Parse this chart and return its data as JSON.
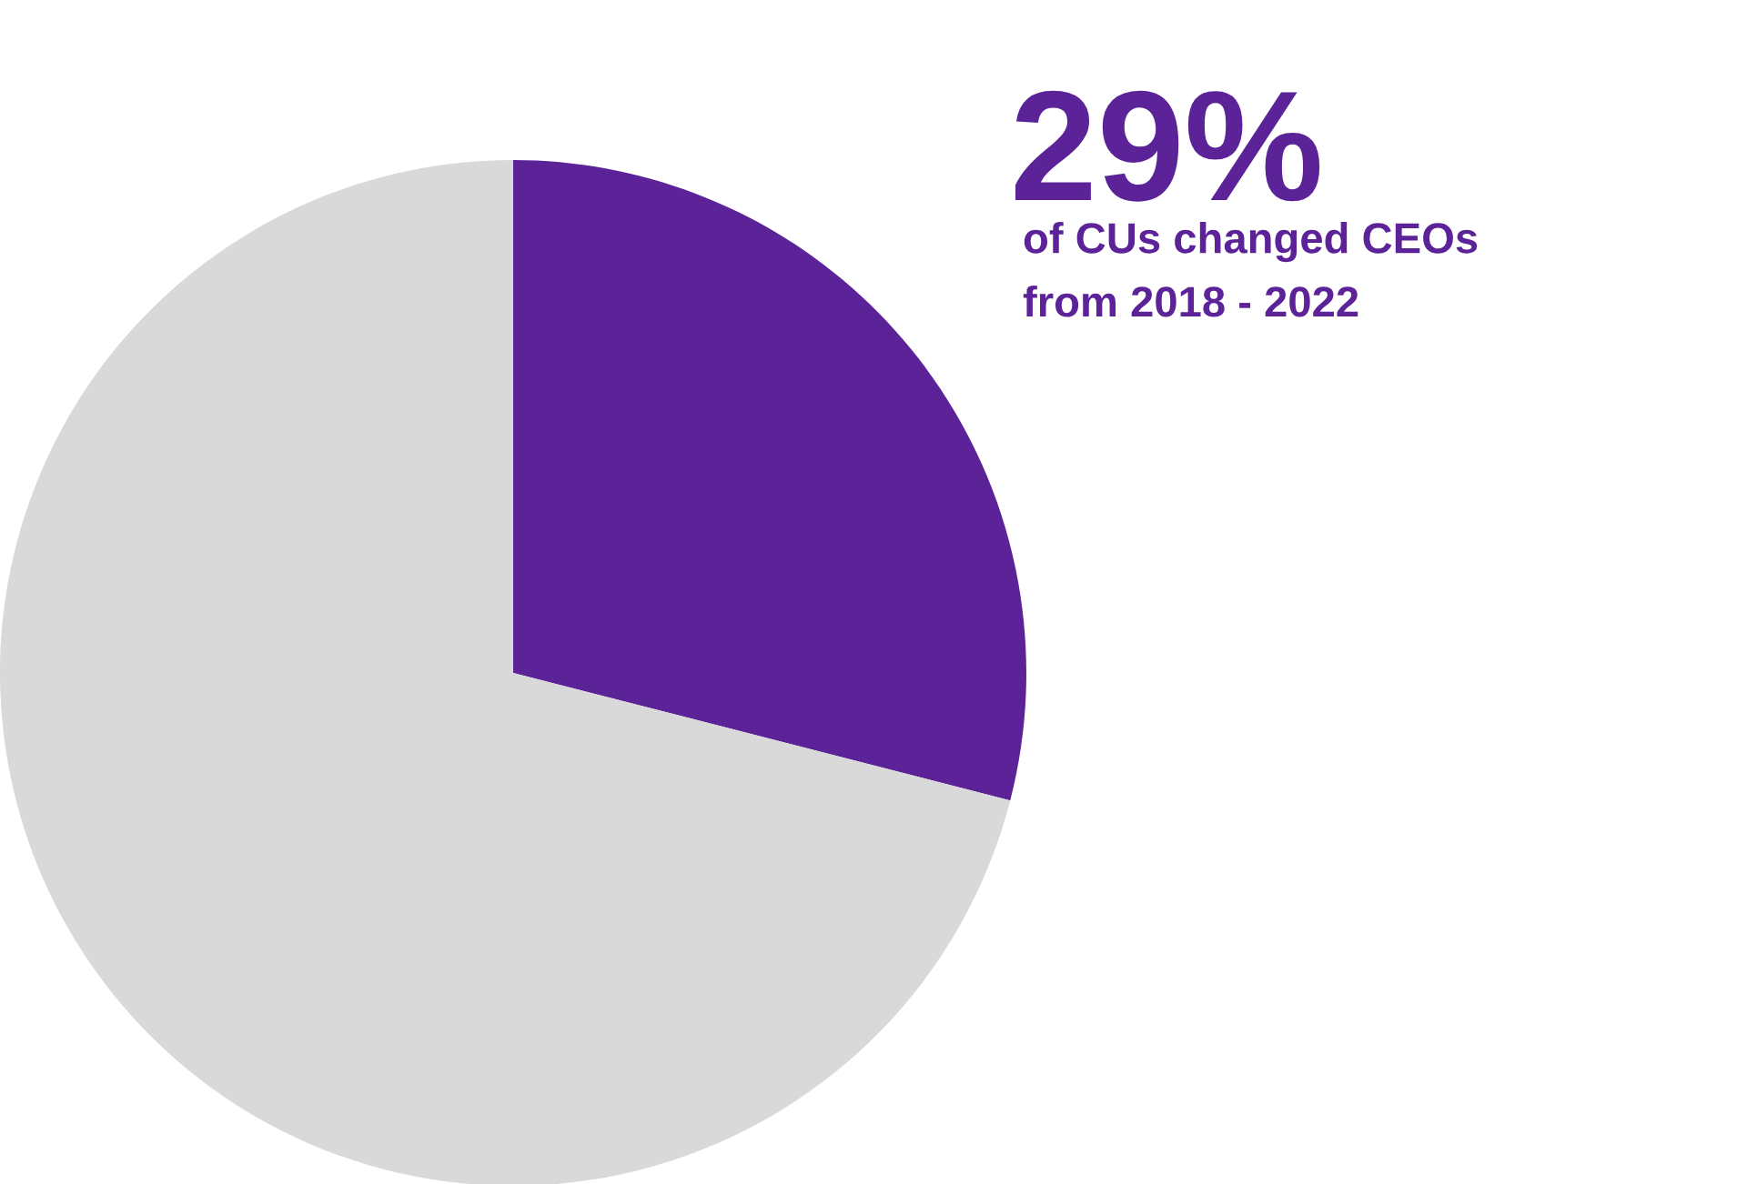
{
  "chart_data": {
    "type": "pie",
    "categories": [
      null,
      null
    ],
    "values": [
      29,
      71
    ],
    "colors": [
      "#5c2399",
      "#d9d9d9"
    ],
    "value_labels": [
      "29%",
      null
    ],
    "annotations": [
      "of CUs changed CEOs\nfrom 2018 - 2022"
    ]
  }
}
